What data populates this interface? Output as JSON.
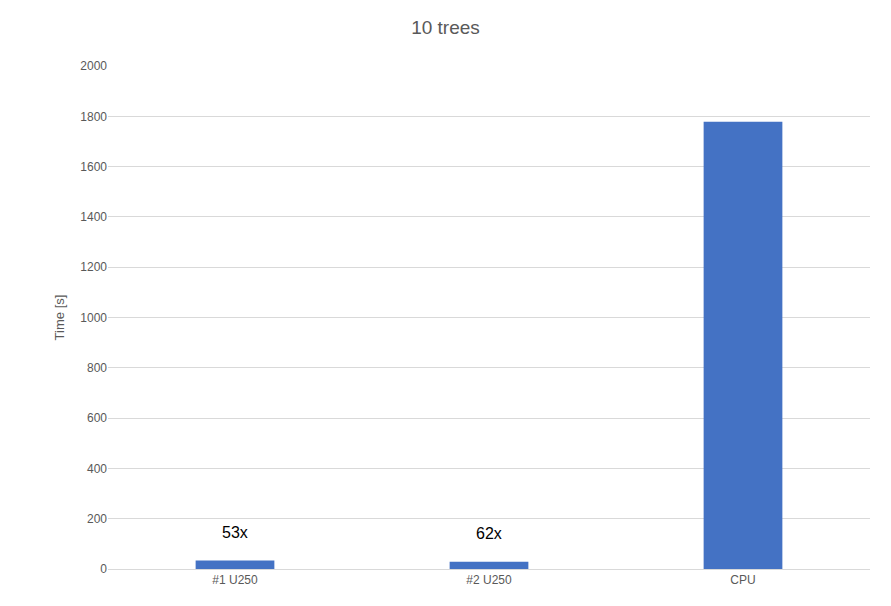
{
  "chart_data": {
    "type": "bar",
    "title": "10 trees",
    "y_label": "Time [s]",
    "categories": [
      "#1 U250",
      "#2 U250",
      "CPU"
    ],
    "values": [
      33.5,
      28.7,
      1778
    ],
    "color": "#4472c4",
    "ylim": [
      0,
      2000
    ],
    "yticks": [
      0,
      200,
      400,
      600,
      800,
      1000,
      1200,
      1400,
      1600,
      1800,
      2000
    ],
    "grid": true,
    "annotations": [
      {
        "text": "53x",
        "category": "#1 U250"
      },
      {
        "text": "62x",
        "category": "#2 U250"
      }
    ]
  }
}
